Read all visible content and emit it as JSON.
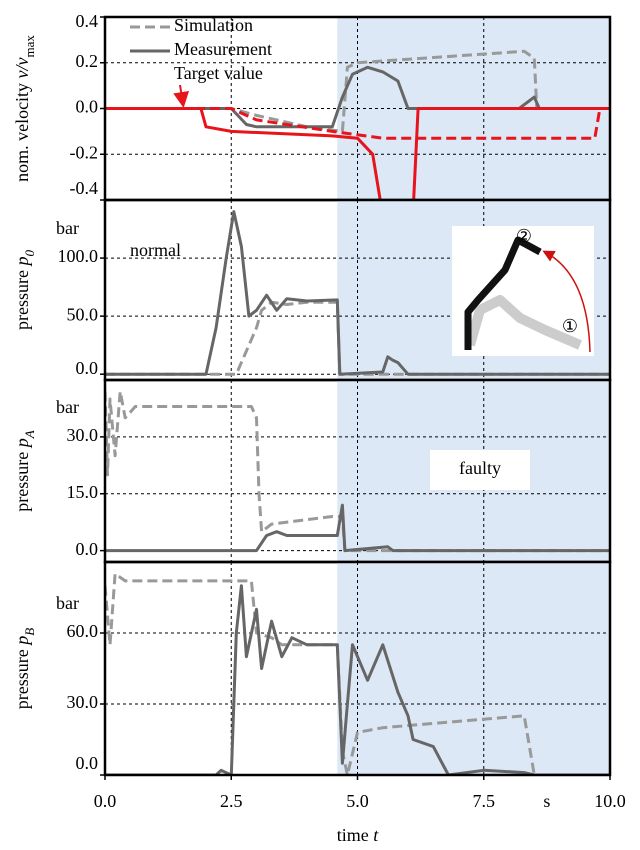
{
  "chart_data": [
    {
      "type": "line",
      "ylabel": [
        {
          "text": "nom. velocity "
        },
        {
          "text": "v/v",
          "italic": true
        },
        {
          "text": "max",
          "sub": true
        }
      ],
      "ylim": [
        -0.4,
        0.4
      ],
      "yticks": [
        {
          "value": 0.4,
          "label": "0.4"
        },
        {
          "value": 0.2,
          "label": "0.2"
        },
        {
          "value": 0,
          "label": "0.0"
        },
        {
          "value": -0.2,
          "label": "-0.2"
        },
        {
          "value": -0.4,
          "label": "-0.4"
        }
      ],
      "xlim": [
        0,
        10
      ],
      "grid": true,
      "shaded_xrange": [
        4.6,
        10
      ],
      "legend": "upper left",
      "series": [
        {
          "name": "Simulation",
          "color": "#999999",
          "style": "dashed",
          "x": [
            0,
            2.5,
            3,
            4,
            4.7,
            4.8,
            5,
            8.3,
            8.5,
            8.55,
            10
          ],
          "values": [
            0,
            0,
            -0.03,
            -0.08,
            -0.1,
            0.18,
            0.2,
            0.25,
            0.22,
            0,
            0
          ]
        },
        {
          "name": "Measurement",
          "color": "#666666",
          "style": "solid",
          "x": [
            0,
            2.5,
            2.8,
            3,
            4.5,
            4.7,
            4.9,
            5.2,
            5.5,
            5.8,
            6,
            8.2,
            8.5,
            8.6,
            10
          ],
          "values": [
            0,
            0,
            -0.07,
            -0.08,
            -0.08,
            0.05,
            0.15,
            0.18,
            0.16,
            0.12,
            0,
            0,
            0.05,
            0,
            0
          ]
        },
        {
          "name": "Target value",
          "color": "#e8141c",
          "style": "solid",
          "x": [
            0,
            1.9,
            2,
            2.5,
            4.5,
            5,
            5.3,
            5.45,
            5.5,
            null,
            6.1,
            6.2,
            6.3,
            8.3,
            10
          ],
          "values": [
            0,
            0,
            -0.08,
            -0.1,
            -0.12,
            -0.13,
            -0.2,
            -0.4,
            -0.45,
            null,
            -0.45,
            0,
            0,
            0,
            0
          ]
        },
        {
          "color": "#e8141c",
          "style": "dashed",
          "x": [
            0,
            2.5,
            3,
            4.5,
            5.5,
            9.7,
            9.8,
            10
          ],
          "values": [
            0,
            0,
            -0.05,
            -0.1,
            -0.13,
            -0.13,
            0,
            0
          ]
        }
      ]
    },
    {
      "type": "line",
      "ylabel": [
        {
          "text": "pressure "
        },
        {
          "text": "p",
          "italic": true
        },
        {
          "text": "0",
          "sub": true,
          "italic": true
        }
      ],
      "unit": "bar",
      "annotation": "normal",
      "inset_labels": [
        "①",
        "②"
      ],
      "ylim": [
        -5,
        150
      ],
      "yticks": [
        {
          "value": 0,
          "label": "0.0"
        },
        {
          "value": 50,
          "label": "50.0"
        },
        {
          "value": 100,
          "label": "100.0"
        }
      ],
      "xlim": [
        0,
        10
      ],
      "grid": true,
      "shaded_xrange": [
        4.6,
        10
      ],
      "series": [
        {
          "color": "#999999",
          "style": "dashed",
          "x": [
            0,
            2.6,
            2.8,
            3,
            3.1,
            3.3,
            3.6,
            4,
            4.6,
            4.65,
            10
          ],
          "values": [
            0,
            0,
            20,
            40,
            55,
            62,
            60,
            62,
            62,
            0,
            0
          ]
        },
        {
          "color": "#666666",
          "style": "solid",
          "x": [
            0,
            2,
            2.2,
            2.4,
            2.55,
            2.7,
            2.85,
            3,
            3.2,
            3.4,
            3.6,
            4,
            4.6,
            4.65,
            5.5,
            5.6,
            5.7,
            5.8,
            6,
            10
          ],
          "values": [
            0,
            0,
            40,
            100,
            140,
            110,
            50,
            55,
            68,
            55,
            65,
            63,
            64,
            0,
            2,
            15,
            12,
            10,
            0,
            0
          ]
        }
      ]
    },
    {
      "type": "line",
      "ylabel": [
        {
          "text": "pressure "
        },
        {
          "text": "p",
          "italic": true
        },
        {
          "text": "A",
          "sub": true,
          "italic": true
        }
      ],
      "unit": "bar",
      "annotation": "faulty",
      "ylim": [
        -3,
        45
      ],
      "yticks": [
        {
          "value": 0,
          "label": "0.0"
        },
        {
          "value": 15,
          "label": "15.0"
        },
        {
          "value": 30,
          "label": "30.0"
        }
      ],
      "xlim": [
        0,
        10
      ],
      "grid": true,
      "shaded_xrange": [
        4.6,
        10
      ],
      "series": [
        {
          "color": "#999999",
          "style": "dashed",
          "x": [
            0,
            0.05,
            0.1,
            0.2,
            0.3,
            0.4,
            0.6,
            2.9,
            3,
            3.05,
            3.1,
            3.3,
            4.5,
            4.7,
            4.75,
            10
          ],
          "values": [
            42,
            20,
            40,
            25,
            42,
            35,
            38,
            38,
            35,
            15,
            5,
            7,
            9,
            9,
            0,
            0
          ]
        },
        {
          "color": "#666666",
          "style": "solid",
          "x": [
            0,
            3,
            3.2,
            3.4,
            3.6,
            4,
            4.6,
            4.7,
            4.75,
            5.6,
            5.7,
            10
          ],
          "values": [
            0,
            0,
            4,
            5,
            4,
            4,
            4,
            12,
            0,
            1,
            0,
            0
          ]
        }
      ]
    },
    {
      "type": "line",
      "ylabel": [
        {
          "text": "pressure "
        },
        {
          "text": "p",
          "italic": true
        },
        {
          "text": "B",
          "sub": true,
          "italic": true
        }
      ],
      "unit": "bar",
      "ylim": [
        0,
        90
      ],
      "yticks": [
        {
          "value": 0,
          "label": "0.0"
        },
        {
          "value": 30,
          "label": "30.0"
        },
        {
          "value": 60,
          "label": "60.0"
        }
      ],
      "xlim": [
        0,
        10
      ],
      "grid": true,
      "shaded_xrange": [
        4.6,
        10
      ],
      "xticks": [
        {
          "value": 0,
          "label": "0.0"
        },
        {
          "value": 2.5,
          "label": "2.5"
        },
        {
          "value": 5,
          "label": "5.0"
        },
        {
          "value": 7.5,
          "label": "7.5"
        },
        {
          "value": 10,
          "label": "10.0"
        }
      ],
      "x_unit": "s",
      "xlabel": [
        {
          "text": "time "
        },
        {
          "text": "t",
          "italic": true
        }
      ],
      "series": [
        {
          "color": "#999999",
          "style": "dashed",
          "x": [
            0,
            0.1,
            0.2,
            0.4,
            2.9,
            3,
            3.3,
            3.5,
            4.6,
            4.7,
            4.8,
            5,
            5.5,
            8.3,
            8.5,
            10
          ],
          "values": [
            80,
            55,
            85,
            82,
            82,
            60,
            58,
            55,
            55,
            10,
            0,
            18,
            20,
            25,
            0,
            0
          ]
        },
        {
          "color": "#666666",
          "style": "solid",
          "x": [
            0,
            2.2,
            2.3,
            2.5,
            2.6,
            2.7,
            2.8,
            3,
            3.1,
            3.3,
            3.5,
            3.7,
            4,
            4.6,
            4.7,
            4.8,
            4.9,
            5.2,
            5.5,
            5.8,
            6,
            6.1,
            6.5,
            6.8,
            7.5,
            8.3,
            8.5,
            10
          ],
          "values": [
            0,
            0,
            2,
            0,
            60,
            80,
            50,
            70,
            45,
            65,
            50,
            58,
            55,
            55,
            5,
            30,
            55,
            40,
            55,
            35,
            25,
            15,
            12,
            0,
            2,
            1,
            0,
            0
          ]
        }
      ]
    }
  ]
}
